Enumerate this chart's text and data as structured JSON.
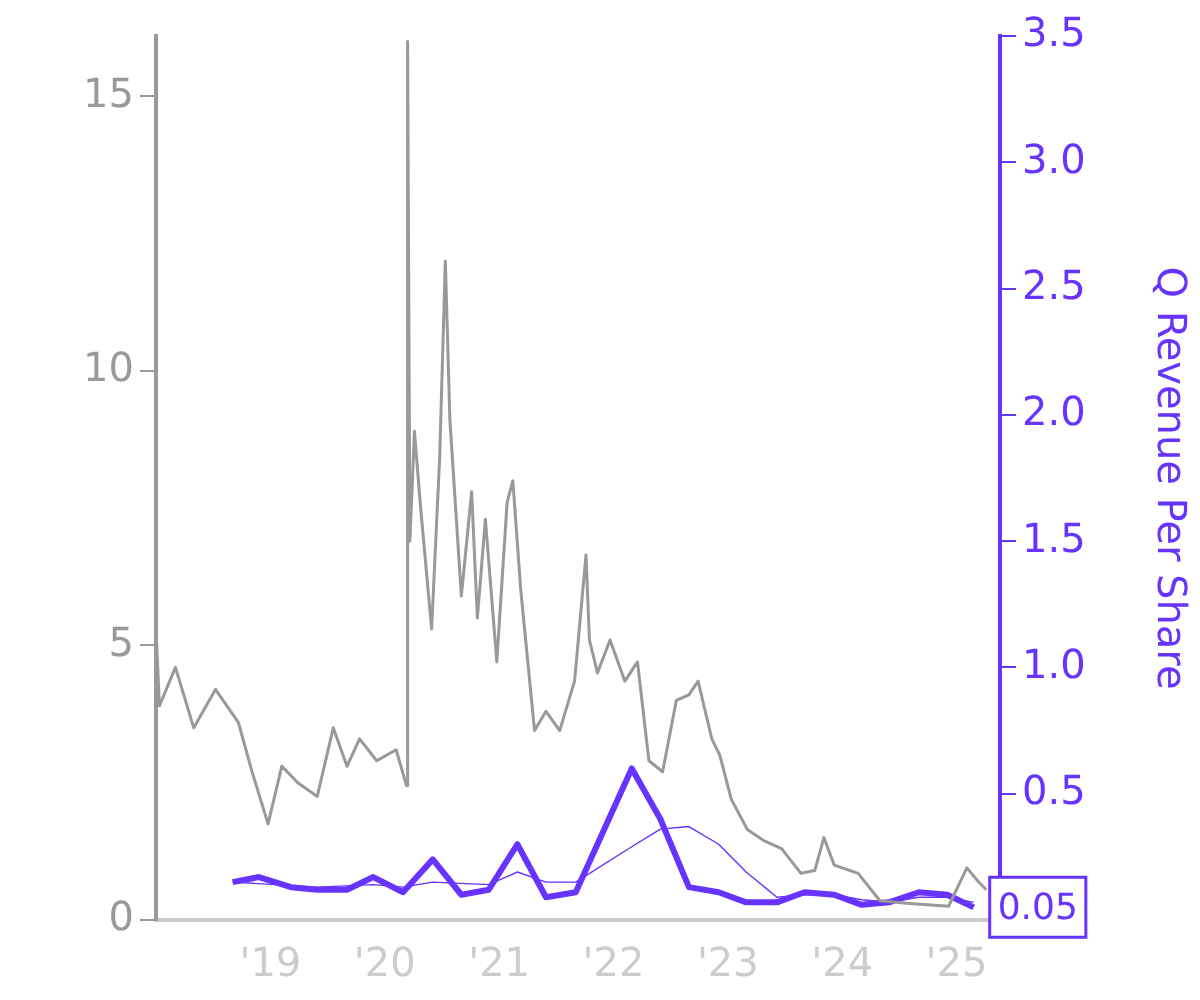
{
  "chart_data": {
    "type": "line",
    "xlim": [
      2018,
      2025.38
    ],
    "xticks": [
      {
        "value": 2019,
        "label": "'19"
      },
      {
        "value": 2020,
        "label": "'20"
      },
      {
        "value": 2021,
        "label": "'21"
      },
      {
        "value": 2022,
        "label": "'22"
      },
      {
        "value": 2023,
        "label": "'23"
      },
      {
        "value": 2024,
        "label": "'24"
      },
      {
        "value": 2025,
        "label": "'25"
      }
    ],
    "ylim": [
      0,
      16.1
    ],
    "yticks": [
      0,
      5,
      10,
      15
    ],
    "y2lim": [
      0,
      3.5
    ],
    "y2ticks": [
      0.5,
      {
        "value": 1,
        "label": "1.0"
      },
      1.5,
      {
        "value": 2,
        "label": "2.0"
      },
      2.5,
      {
        "value": 3,
        "label": "3.0"
      },
      3.5
    ],
    "y2label": "Q Revenue Per Share",
    "grid": false,
    "legend": false,
    "marker": "none",
    "line_style": "solid",
    "series": [
      {
        "color": "#999999",
        "x": [
          2018.0,
          2018.03,
          2018.17,
          2018.33,
          2018.52,
          2018.72,
          2018.84,
          2018.98,
          2019.1,
          2019.24,
          2019.41,
          2019.55,
          2019.67,
          2019.78,
          2019.93,
          2020.1,
          2020.19,
          2020.2,
          2020.22,
          2020.26,
          2020.31,
          2020.41,
          2020.48,
          2020.53,
          2020.57,
          2020.62,
          2020.67,
          2020.76,
          2020.81,
          2020.88,
          2020.98,
          2021.07,
          2021.12,
          2021.19,
          2021.31,
          2021.41,
          2021.53,
          2021.66,
          2021.76,
          2021.79,
          2021.86,
          2021.97,
          2022.1,
          2022.21,
          2022.31,
          2022.43,
          2022.55,
          2022.66,
          2022.74,
          2022.86,
          2022.93,
          2023.03,
          2023.17,
          2023.31,
          2023.47,
          2023.64,
          2023.76,
          2023.84,
          2023.93,
          2024.14,
          2024.33,
          2024.59,
          2024.93,
          2025.09,
          2025.19,
          2025.26
        ],
        "values": [
          5.3,
          3.9,
          4.6,
          3.5,
          4.2,
          3.6,
          2.7,
          1.75,
          2.8,
          2.5,
          2.25,
          3.5,
          2.8,
          3.3,
          2.9,
          3.1,
          2.45,
          16,
          6.9,
          8.9,
          7.6,
          5.3,
          8.4,
          12.0,
          9.1,
          7.5,
          5.9,
          7.8,
          5.5,
          7.3,
          4.7,
          7.6,
          8.0,
          6.0,
          3.45,
          3.8,
          3.45,
          4.35,
          6.65,
          5.1,
          4.5,
          5.1,
          4.35,
          4.7,
          2.9,
          2.7,
          4.0,
          4.1,
          4.35,
          3.3,
          3.0,
          2.2,
          1.65,
          1.45,
          1.3,
          0.85,
          0.9,
          1.5,
          1.0,
          0.85,
          0.35,
          0.3,
          0.25,
          0.95,
          0.7,
          0.55
        ]
      },
      {
        "color": "#6633ff",
        "axis": "y2",
        "x": [
          2018.67,
          2018.9,
          2019.18,
          2019.41,
          2019.67,
          2019.9,
          2020.16,
          2020.42,
          2020.67,
          2020.91,
          2021.16,
          2021.41,
          2021.67,
          2022.16,
          2022.41,
          2022.66,
          2022.92,
          2023.16,
          2023.43,
          2023.67,
          2023.93,
          2024.17,
          2024.41,
          2024.67,
          2024.92,
          2025.15
        ],
        "values": [
          0.15,
          0.17,
          0.13,
          0.12,
          0.12,
          0.17,
          0.11,
          0.24,
          0.1,
          0.12,
          0.3,
          0.09,
          0.11,
          0.6,
          0.4,
          0.13,
          0.11,
          0.07,
          0.07,
          0.11,
          0.1,
          0.06,
          0.07,
          0.11,
          0.1,
          0.05
        ]
      },
      {
        "color": "#6633ff",
        "axis": "y2",
        "x": [
          2018.67,
          2019.41,
          2019.9,
          2020.16,
          2020.42,
          2020.91,
          2021.16,
          2021.41,
          2021.67,
          2022.16,
          2022.41,
          2022.66,
          2022.92,
          2023.16,
          2023.43,
          2023.67,
          2023.93,
          2024.17,
          2024.41,
          2024.67,
          2024.92,
          2025.15
        ],
        "values": [
          0.15,
          0.13,
          0.14,
          0.13,
          0.15,
          0.14,
          0.19,
          0.15,
          0.15,
          0.29,
          0.36,
          0.37,
          0.3,
          0.19,
          0.09,
          0.1,
          0.1,
          0.08,
          0.07,
          0.09,
          0.09,
          0.07
        ]
      }
    ],
    "annotations": [
      {
        "text": "0.05",
        "x": 2025.15,
        "y": 0.05
      }
    ]
  }
}
